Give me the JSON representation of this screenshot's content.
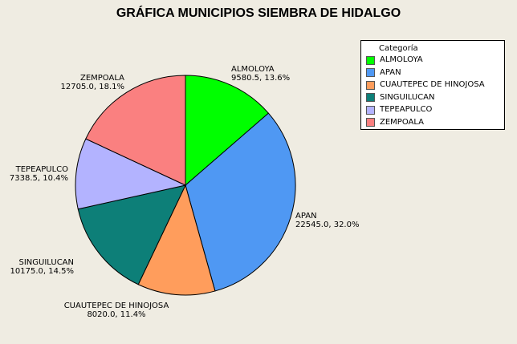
{
  "chart_data": {
    "type": "pie",
    "title": "GRÁFICA MUNICIPIOS SIEMBRA DE HIDALGO",
    "legend_title": "Categoría",
    "legend_position": "top-right",
    "slices": [
      {
        "name": "ALMOLOYA",
        "value": 9580.5,
        "percent": "13.6%",
        "value_label": "9580.5, 13.6%",
        "color": "#00ff00"
      },
      {
        "name": "APAN",
        "value": 22545.0,
        "percent": "32.0%",
        "value_label": "22545.0, 32.0%",
        "color": "#4f98f3"
      },
      {
        "name": "CUAUTEPEC DE HINOJOSA",
        "value": 8020.0,
        "percent": "11.4%",
        "value_label": "8020.0, 11.4%",
        "color": "#ff9d5c"
      },
      {
        "name": "SINGUILUCAN",
        "value": 10175.0,
        "percent": "14.5%",
        "value_label": "10175.0, 14.5%",
        "color": "#0d7f78"
      },
      {
        "name": "TEPEAPULCO",
        "value": 7338.5,
        "percent": "10.4%",
        "value_label": "7338.5, 10.4%",
        "color": "#b3b3ff"
      },
      {
        "name": "ZEMPOALA",
        "value": 12705.0,
        "percent": "18.1%",
        "value_label": "12705.0, 18.1%",
        "color": "#fa8080"
      }
    ]
  }
}
